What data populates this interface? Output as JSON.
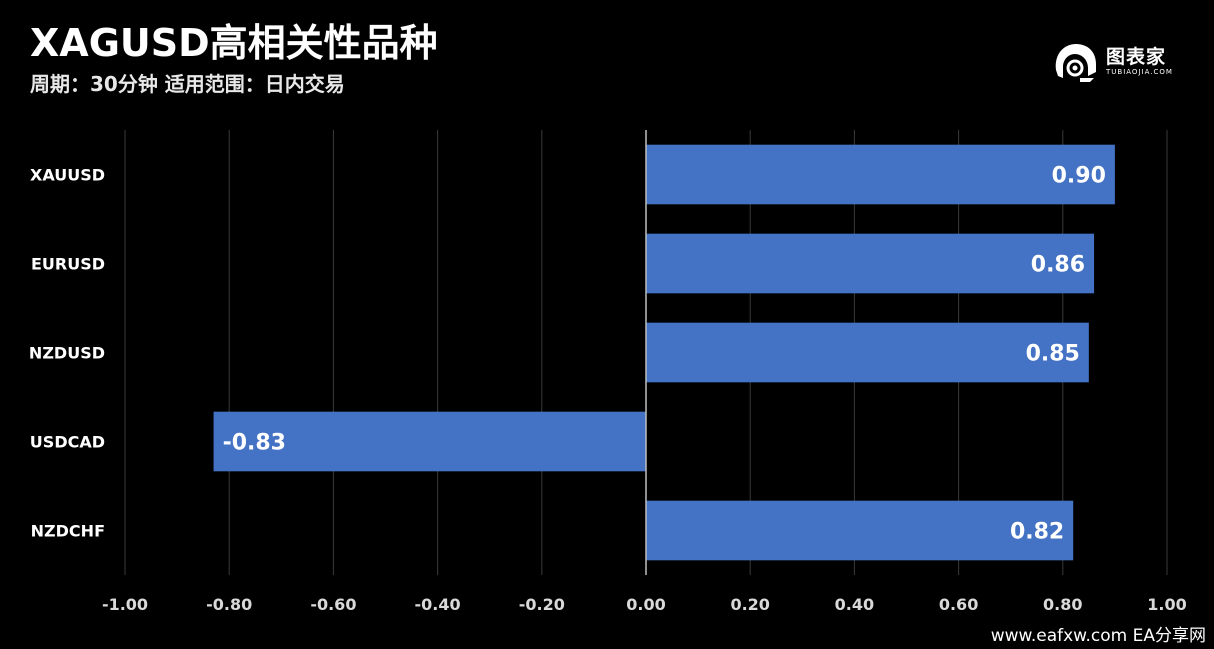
{
  "header": {
    "title": "XAGUSD高相关性品种",
    "subtitle": "周期：30分钟  适用范围：日内交易"
  },
  "logo": {
    "icon": "robot-head-icon",
    "text": "图表家",
    "subtext": "TUBIAOJIA.COM"
  },
  "footer": {
    "text": "www.eafxw.com   EA分享网"
  },
  "colors": {
    "background": "#000000",
    "bar": "#4472c4",
    "grid": "#3a3a3a",
    "zero_line": "#bfbfbf"
  },
  "chart_data": {
    "type": "bar",
    "orientation": "horizontal",
    "title": "XAGUSD高相关性品种",
    "subtitle": "周期：30分钟  适用范围：日内交易",
    "categories": [
      "XAUUSD",
      "EURUSD",
      "NZDUSD",
      "USDCAD",
      "NZDCHF"
    ],
    "values": [
      0.9,
      0.86,
      0.85,
      -0.83,
      0.82
    ],
    "value_labels": [
      "0.90",
      "0.86",
      "0.85",
      "-0.83",
      "0.82"
    ],
    "xlim": [
      -1.0,
      1.0
    ],
    "xticks": [
      -1.0,
      -0.8,
      -0.6,
      -0.4,
      -0.2,
      0.0,
      0.2,
      0.4,
      0.6,
      0.8,
      1.0
    ],
    "xtick_labels": [
      "-1.00",
      "-0.80",
      "-0.60",
      "-0.40",
      "-0.20",
      "0.00",
      "0.20",
      "0.40",
      "0.60",
      "0.80",
      "1.00"
    ],
    "xlabel": "",
    "ylabel": "",
    "grid": "vertical",
    "legend": "none"
  }
}
